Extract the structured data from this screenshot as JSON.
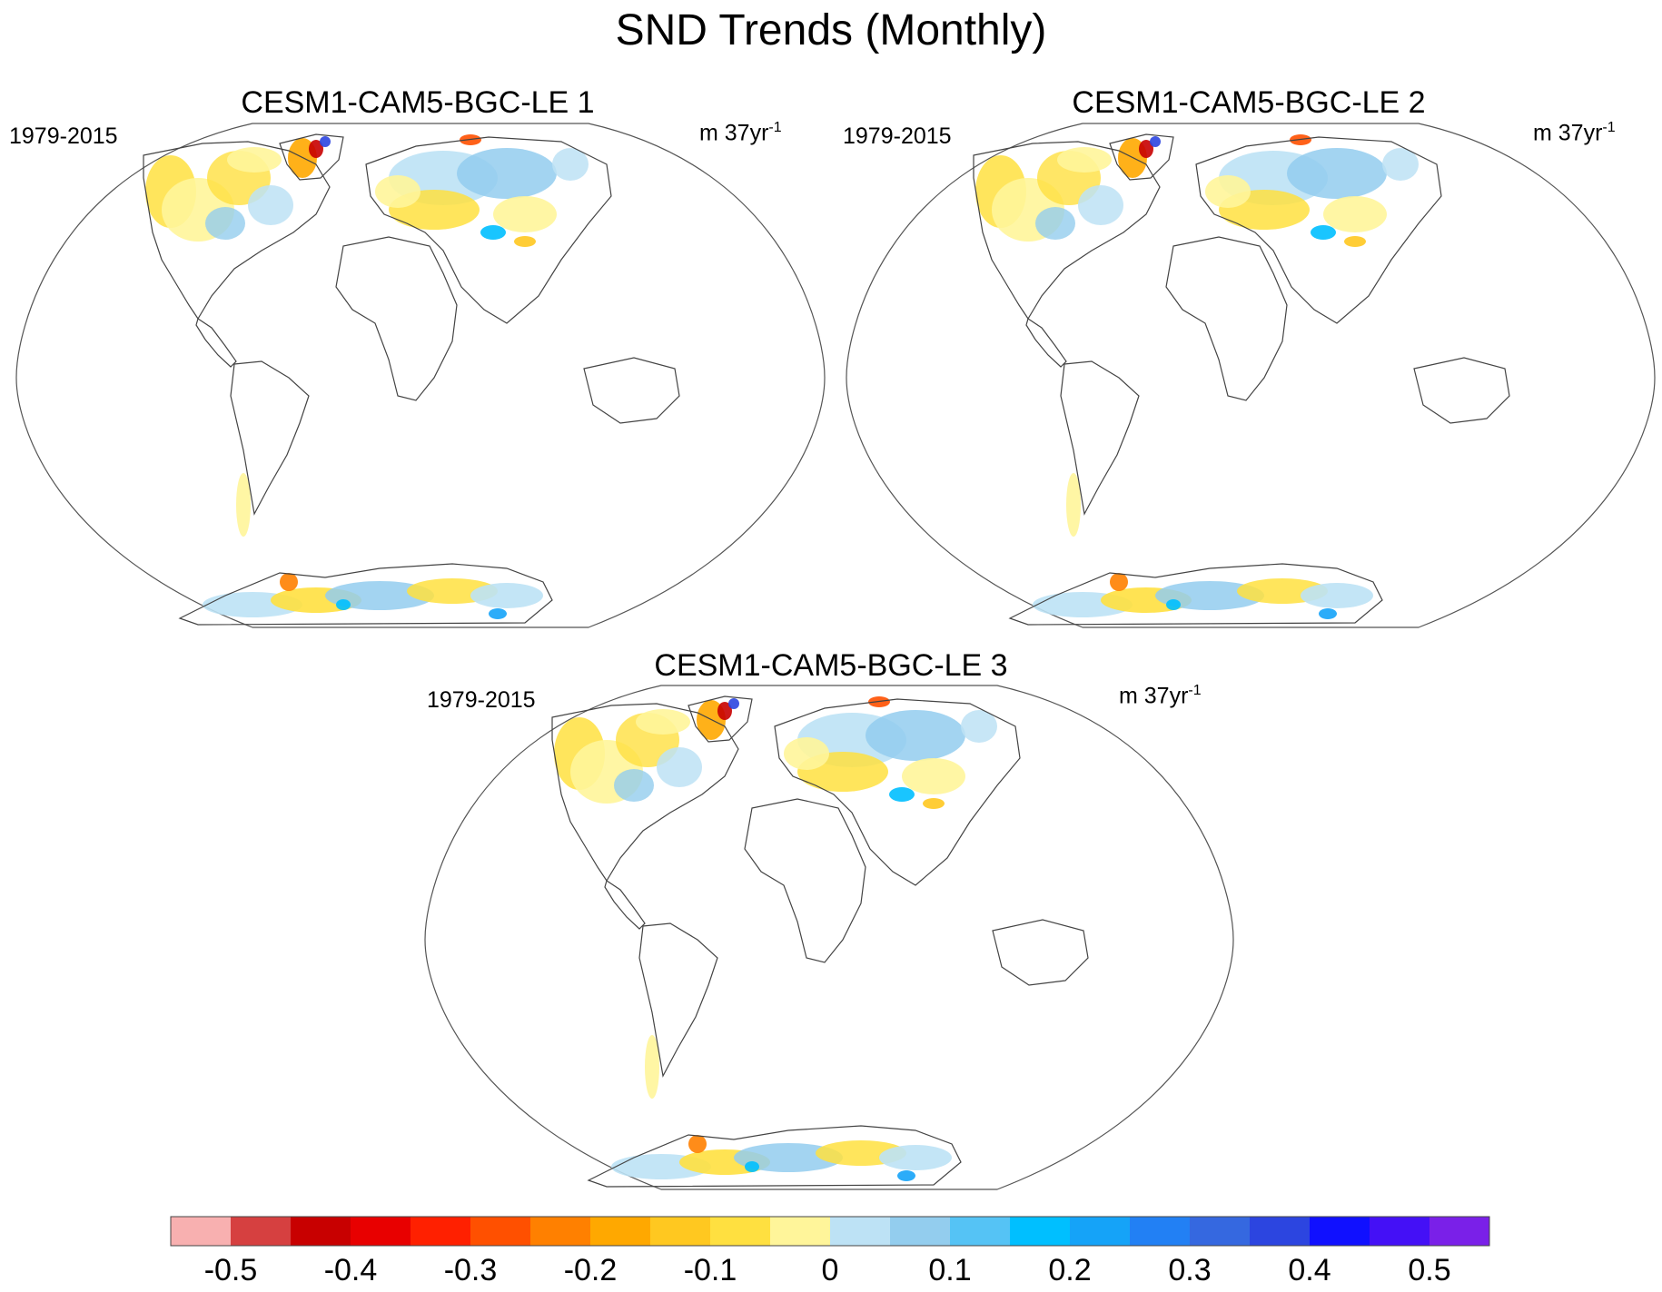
{
  "title": "SND Trends (Monthly)",
  "panels": [
    {
      "title": "CESM1-CAM5-BGC-LE 1",
      "period": "1979-2015",
      "units_base": "m 37yr",
      "units_exp": "-1"
    },
    {
      "title": "CESM1-CAM5-BGC-LE 2",
      "period": "1979-2015",
      "units_base": "m 37yr",
      "units_exp": "-1"
    },
    {
      "title": "CESM1-CAM5-BGC-LE 3",
      "period": "1979-2015",
      "units_base": "m 37yr",
      "units_exp": "-1"
    }
  ],
  "colorbar": {
    "colors": [
      "#f8b0b0",
      "#d64040",
      "#c80000",
      "#e80000",
      "#ff2000",
      "#ff5000",
      "#ff8000",
      "#ffa800",
      "#ffc820",
      "#ffe040",
      "#fff59a",
      "#bde2f5",
      "#93cdee",
      "#55c3f5",
      "#00bfff",
      "#15a3f8",
      "#2280f4",
      "#3568e0",
      "#2c45e0",
      "#1010ff",
      "#4410f6",
      "#7a20e8"
    ],
    "labels": [
      "-0.5",
      "-0.4",
      "-0.3",
      "-0.2",
      "-0.1",
      "0",
      "0.1",
      "0.2",
      "0.3",
      "0.4",
      "0.5"
    ]
  }
}
